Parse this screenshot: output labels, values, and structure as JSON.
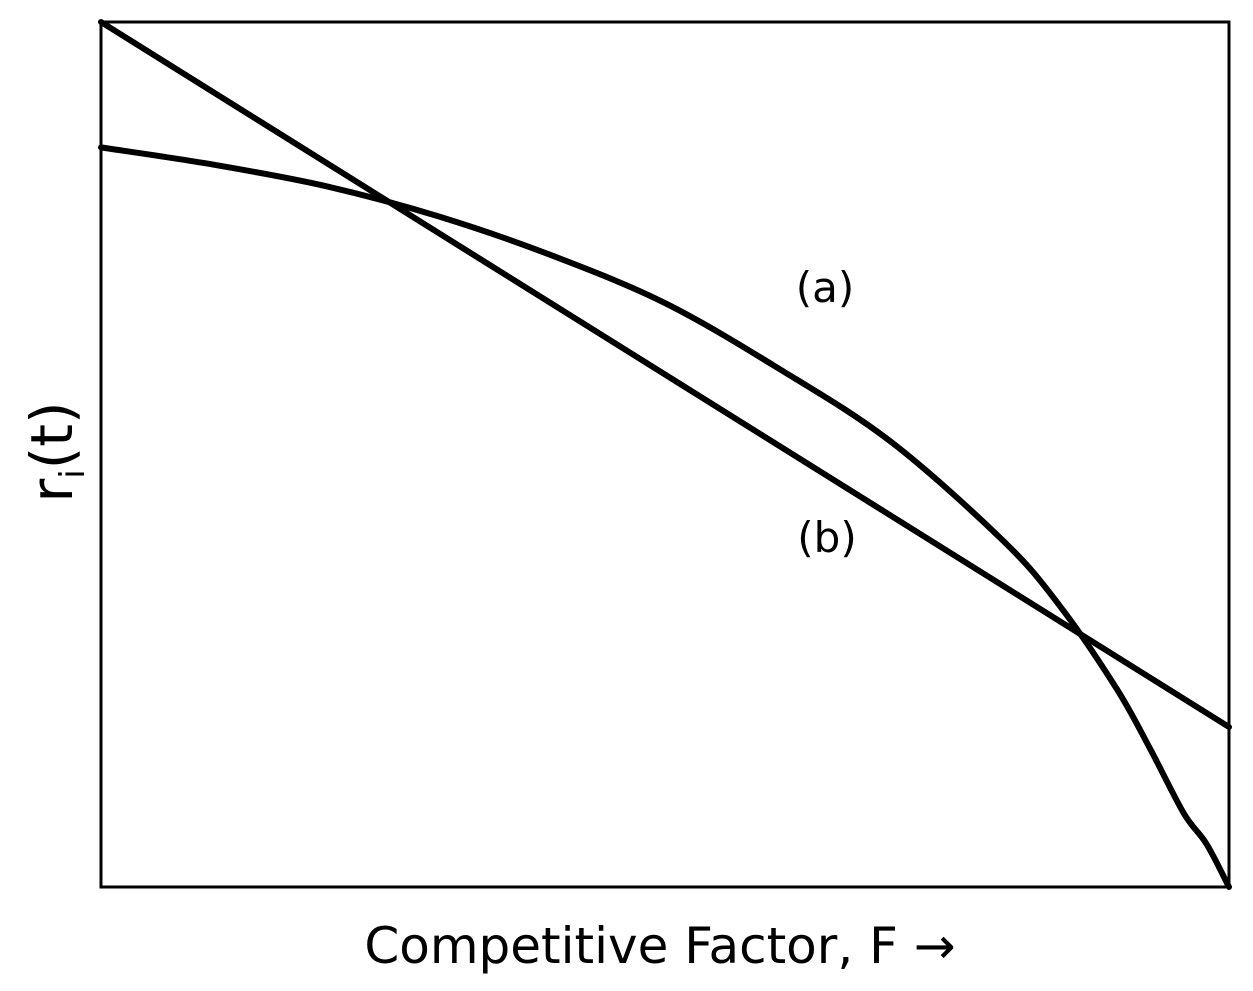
{
  "chart_data": {
    "type": "line",
    "title": "",
    "xlabel": "Competitive Factor, F →",
    "ylabel": "r",
    "ylabel_subscript": "i",
    "ylabel_suffix": "(t)",
    "xlim": [
      0,
      1
    ],
    "ylim": [
      0,
      1
    ],
    "grid": false,
    "legend": "none",
    "x_ticks": [],
    "y_ticks": [],
    "line_color": "#000000",
    "series": [
      {
        "name": "(a)",
        "x": [
          0.0,
          0.1,
          0.2,
          0.3,
          0.4,
          0.5,
          0.6,
          0.7,
          0.8,
          0.85,
          0.9,
          0.93,
          0.96,
          0.98,
          1.0
        ],
        "y": [
          0.855,
          0.835,
          0.81,
          0.775,
          0.73,
          0.675,
          0.6,
          0.515,
          0.4,
          0.325,
          0.23,
          0.16,
          0.085,
          0.05,
          0.0
        ]
      },
      {
        "name": "(b)",
        "x": [
          0.0,
          1.0
        ],
        "y": [
          1.0,
          0.185
        ]
      }
    ]
  }
}
